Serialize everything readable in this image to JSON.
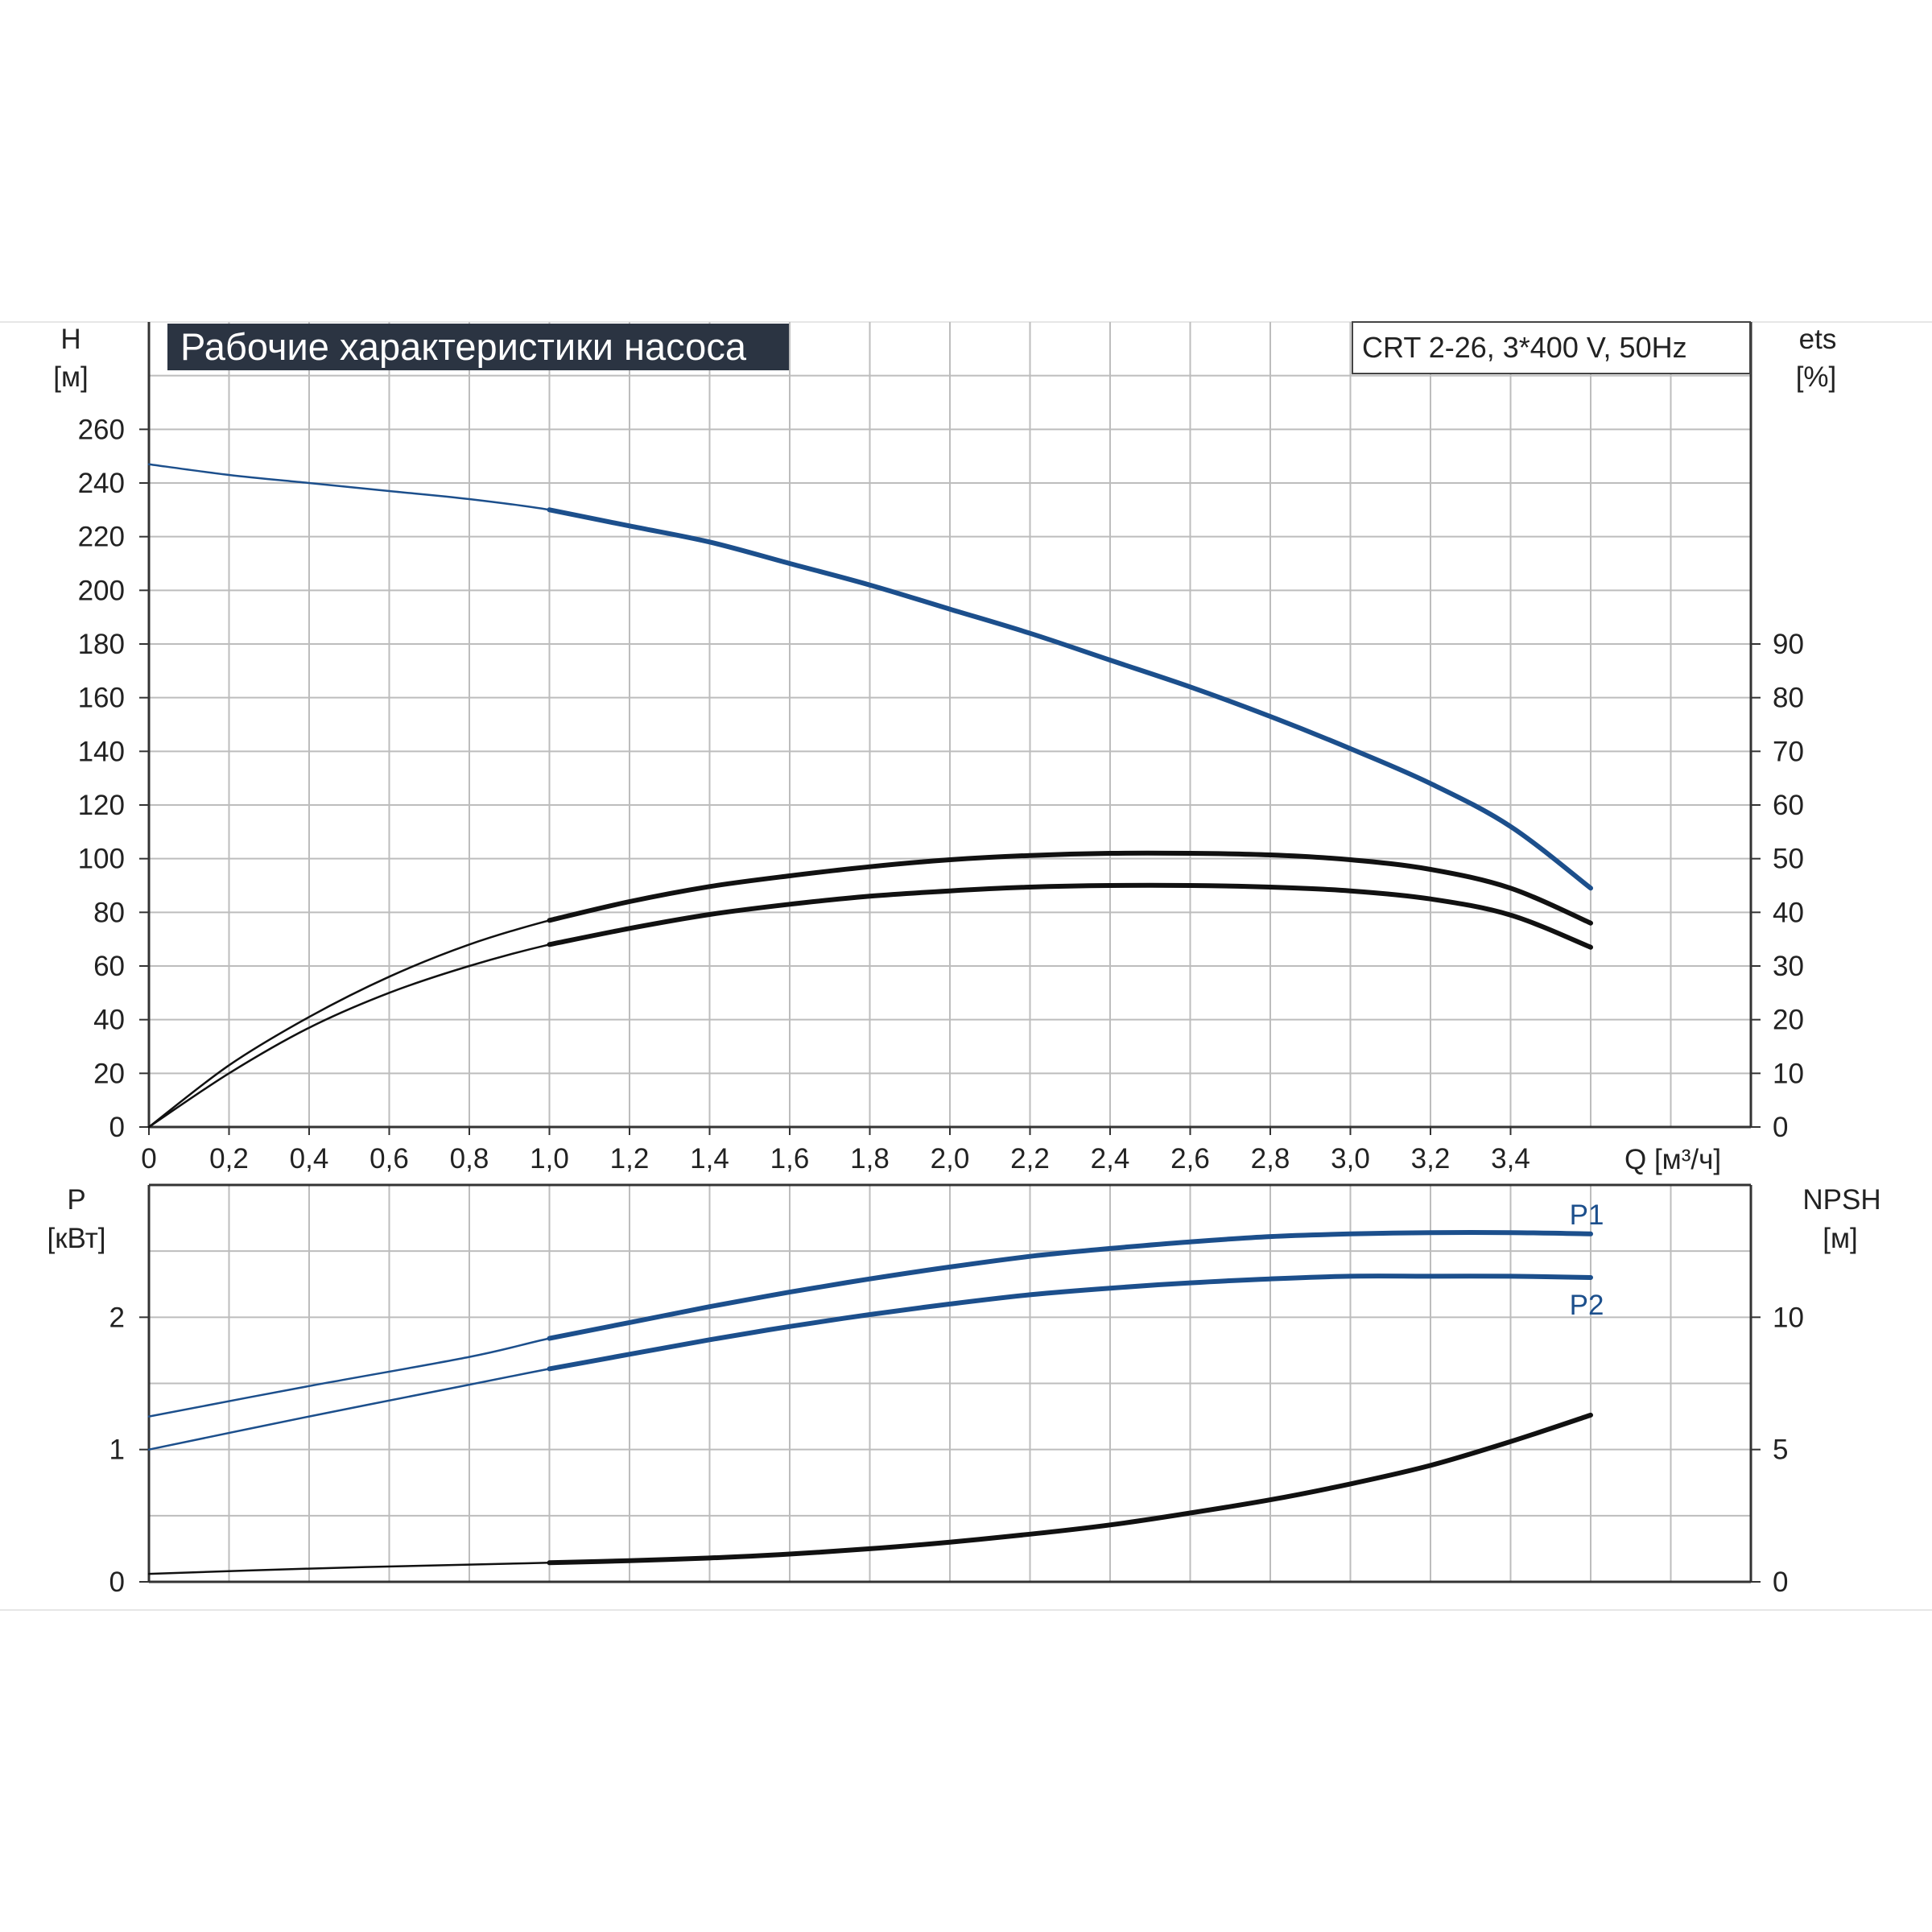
{
  "chart_data": [
    {
      "type": "line",
      "title": "Рабочие характеристики насоса",
      "subtitle": "CRT 2-26, 3*400 V, 50Hz",
      "xlabel": "Q [м³/ч]",
      "ylabel": "H",
      "ylabel_unit": "[м]",
      "y2label": "ets",
      "y2label_unit": "[%]",
      "xlim": [
        0,
        4.0
      ],
      "ylim": [
        0,
        300
      ],
      "y2lim": [
        0,
        150
      ],
      "x_ticks": [
        "0",
        "0,2",
        "0,4",
        "0,6",
        "0,8",
        "1,0",
        "1,2",
        "1,4",
        "1,6",
        "1,8",
        "2,0",
        "2,2",
        "2,4",
        "2,6",
        "2,8",
        "3,0",
        "3,2",
        "3,4"
      ],
      "y_ticks": [
        "0",
        "20",
        "40",
        "60",
        "80",
        "100",
        "120",
        "140",
        "160",
        "180",
        "200",
        "220",
        "240",
        "260"
      ],
      "y2_ticks": [
        "0",
        "10",
        "20",
        "30",
        "40",
        "50",
        "60",
        "70",
        "80",
        "90"
      ],
      "grid": true,
      "colors": {
        "blue": "#1c4f8c",
        "black": "#111111",
        "grid": "#bdbdbd",
        "title_bg": "#2b3442"
      },
      "series": [
        {
          "axis": "left",
          "color": "#1c4f8c",
          "x": [
            0,
            0.2,
            0.4,
            0.6,
            0.8,
            1.0,
            1.2,
            1.4,
            1.6,
            1.8,
            2.0,
            2.2,
            2.4,
            2.6,
            2.8,
            3.0,
            3.2,
            3.4,
            3.6
          ],
          "y": [
            247,
            243,
            240,
            237,
            234,
            230,
            224,
            218,
            210,
            202,
            193,
            184,
            174,
            164,
            153,
            141,
            128,
            112,
            89
          ]
        },
        {
          "axis": "right",
          "color": "#111111",
          "x": [
            0,
            0.2,
            0.4,
            0.6,
            0.8,
            1.0,
            1.2,
            1.4,
            1.6,
            1.8,
            2.0,
            2.2,
            2.4,
            2.6,
            2.8,
            3.0,
            3.2,
            3.4,
            3.6
          ],
          "y": [
            0,
            11.5,
            20.5,
            28,
            34,
            38.5,
            42,
            44.8,
            46.8,
            48.5,
            49.8,
            50.6,
            51,
            51,
            50.7,
            49.8,
            48,
            44.5,
            38
          ]
        },
        {
          "axis": "right",
          "color": "#111111",
          "x": [
            0,
            0.2,
            0.4,
            0.6,
            0.8,
            1.0,
            1.2,
            1.4,
            1.6,
            1.8,
            2.0,
            2.2,
            2.4,
            2.6,
            2.8,
            3.0,
            3.2,
            3.4,
            3.6
          ],
          "y": [
            0,
            10,
            18.5,
            25,
            30,
            34,
            37,
            39.6,
            41.5,
            43,
            44,
            44.7,
            45,
            45,
            44.7,
            44,
            42.5,
            39.5,
            33.5
          ]
        }
      ]
    },
    {
      "type": "line",
      "xlim": [
        0,
        4.0
      ],
      "ylabel": "P",
      "ylabel_unit": "[кВт]",
      "y2label": "NPSH",
      "y2label_unit": "[м]",
      "ylim": [
        0,
        3.0
      ],
      "y2lim": [
        0,
        15
      ],
      "y_ticks": [
        "0",
        "1",
        "2"
      ],
      "y2_ticks": [
        "0",
        "5",
        "10"
      ],
      "grid": true,
      "series": [
        {
          "name": "P1",
          "axis": "left",
          "color": "#1c4f8c",
          "x": [
            0,
            0.4,
            0.8,
            1.0,
            1.2,
            1.4,
            1.6,
            1.8,
            2.0,
            2.2,
            2.4,
            2.6,
            2.8,
            3.0,
            3.2,
            3.4,
            3.6
          ],
          "y": [
            1.25,
            1.48,
            1.7,
            1.84,
            1.96,
            2.08,
            2.19,
            2.29,
            2.38,
            2.46,
            2.52,
            2.57,
            2.61,
            2.63,
            2.64,
            2.64,
            2.63
          ]
        },
        {
          "name": "P2",
          "axis": "left",
          "color": "#1c4f8c",
          "x": [
            0,
            0.4,
            0.8,
            1.0,
            1.2,
            1.4,
            1.6,
            1.8,
            2.0,
            2.2,
            2.4,
            2.6,
            2.8,
            3.0,
            3.2,
            3.4,
            3.6
          ],
          "y": [
            1.0,
            1.25,
            1.49,
            1.61,
            1.72,
            1.83,
            1.93,
            2.02,
            2.1,
            2.17,
            2.22,
            2.26,
            2.29,
            2.31,
            2.31,
            2.31,
            2.3
          ]
        },
        {
          "axis": "right",
          "color": "#111111",
          "x": [
            0,
            0.4,
            0.8,
            1.0,
            1.2,
            1.4,
            1.6,
            1.8,
            2.0,
            2.2,
            2.4,
            2.6,
            2.8,
            3.0,
            3.2,
            3.4,
            3.6
          ],
          "y": [
            0.3,
            0.5,
            0.65,
            0.72,
            0.8,
            0.9,
            1.05,
            1.25,
            1.5,
            1.8,
            2.15,
            2.6,
            3.1,
            3.7,
            4.4,
            5.3,
            6.3
          ]
        }
      ]
    }
  ]
}
